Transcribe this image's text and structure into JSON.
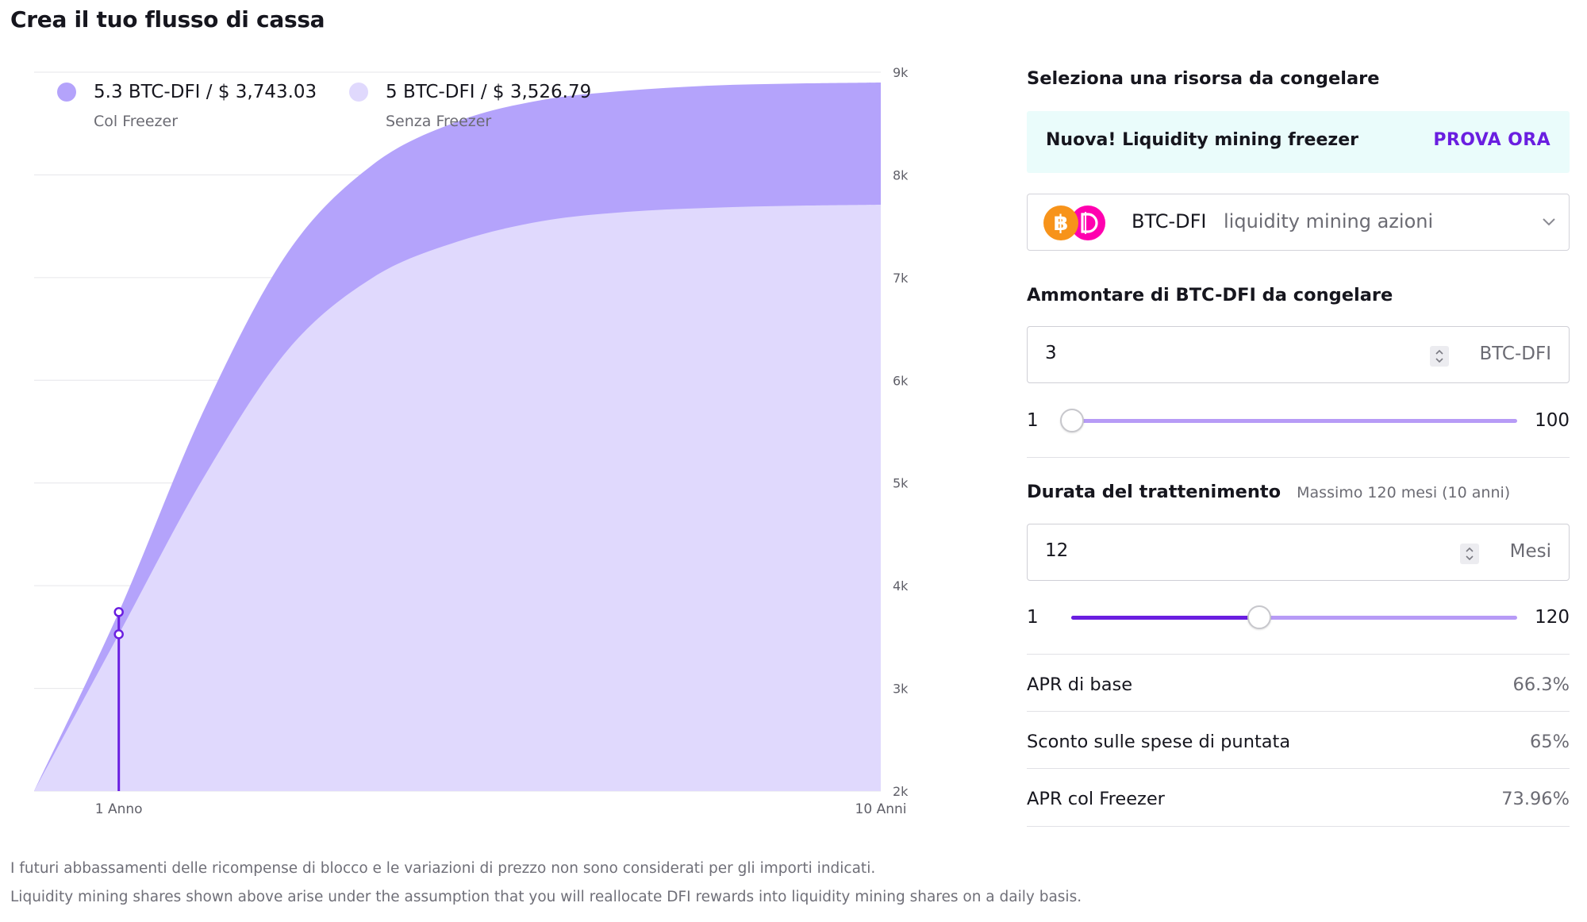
{
  "title": "Crea il tuo flusso di cassa",
  "legend": [
    {
      "value": "5.3 BTC-DFI / $ 3,743.03",
      "caption": "Col Freezer",
      "color": "#b4a3fb"
    },
    {
      "value": "5 BTC-DFI / $ 3,526.79",
      "caption": "Senza Freezer",
      "color": "#e0d9fd"
    }
  ],
  "chart_data": {
    "type": "area",
    "x_labels": [
      "1 Anno",
      "10 Anni"
    ],
    "y_ticks": [
      "2k",
      "3k",
      "4k",
      "5k",
      "6k",
      "7k",
      "8k",
      "9k"
    ],
    "ylim": [
      2000,
      9000
    ],
    "series": [
      {
        "name": "Col Freezer",
        "color": "#b4a3fb",
        "x": [
          0,
          1,
          2,
          3,
          4,
          5,
          6,
          7,
          8,
          9,
          10
        ],
        "values": [
          2000,
          3743,
          5700,
          7250,
          8100,
          8520,
          8730,
          8820,
          8870,
          8890,
          8900
        ]
      },
      {
        "name": "Senza Freezer",
        "color": "#e0d9fd",
        "x": [
          0,
          1,
          2,
          3,
          4,
          5,
          6,
          7,
          8,
          9,
          10
        ],
        "values": [
          2000,
          3527,
          5050,
          6300,
          7000,
          7350,
          7550,
          7640,
          7680,
          7700,
          7710
        ]
      }
    ],
    "marker": {
      "x": 1,
      "values": [
        3743,
        3527
      ],
      "color": "#6a1ee0"
    },
    "grid": true
  },
  "footnotes": [
    "I futuri abbassamenti delle ricompense di blocco e le variazioni di prezzo non sono considerati per gli importi indicati.",
    "Liquidity mining shares shown above arise under the assumption that you will reallocate DFI rewards into liquidity mining shares on a daily basis."
  ],
  "panel": {
    "select_resource_label": "Seleziona una risorsa da congelare",
    "promo_text": "Nuova!  Liquidity mining freezer",
    "promo_cta": "PROVA ORA",
    "asset": {
      "pair": "BTC-DFI",
      "description": "liquidity mining azioni",
      "icons": [
        "bitcoin-icon",
        "defichain-icon"
      ]
    },
    "amount_label": "Ammontare di BTC-DFI da congelare",
    "amount": {
      "value": "3",
      "unit": "BTC-DFI",
      "min": "1",
      "max": "100",
      "fraction": 0.0
    },
    "duration_label": "Durata del trattenimento",
    "duration_hint": "Massimo 120 mesi (10 anni)",
    "duration": {
      "value": "12",
      "unit": "Mesi",
      "min": "1",
      "max": "120",
      "fraction": 0.42
    },
    "stats": [
      {
        "label": "APR di base",
        "value": "66.3%"
      },
      {
        "label": "Sconto sulle spese di puntata",
        "value": "65%"
      },
      {
        "label": "APR col Freezer",
        "value": "73.96%"
      }
    ]
  }
}
